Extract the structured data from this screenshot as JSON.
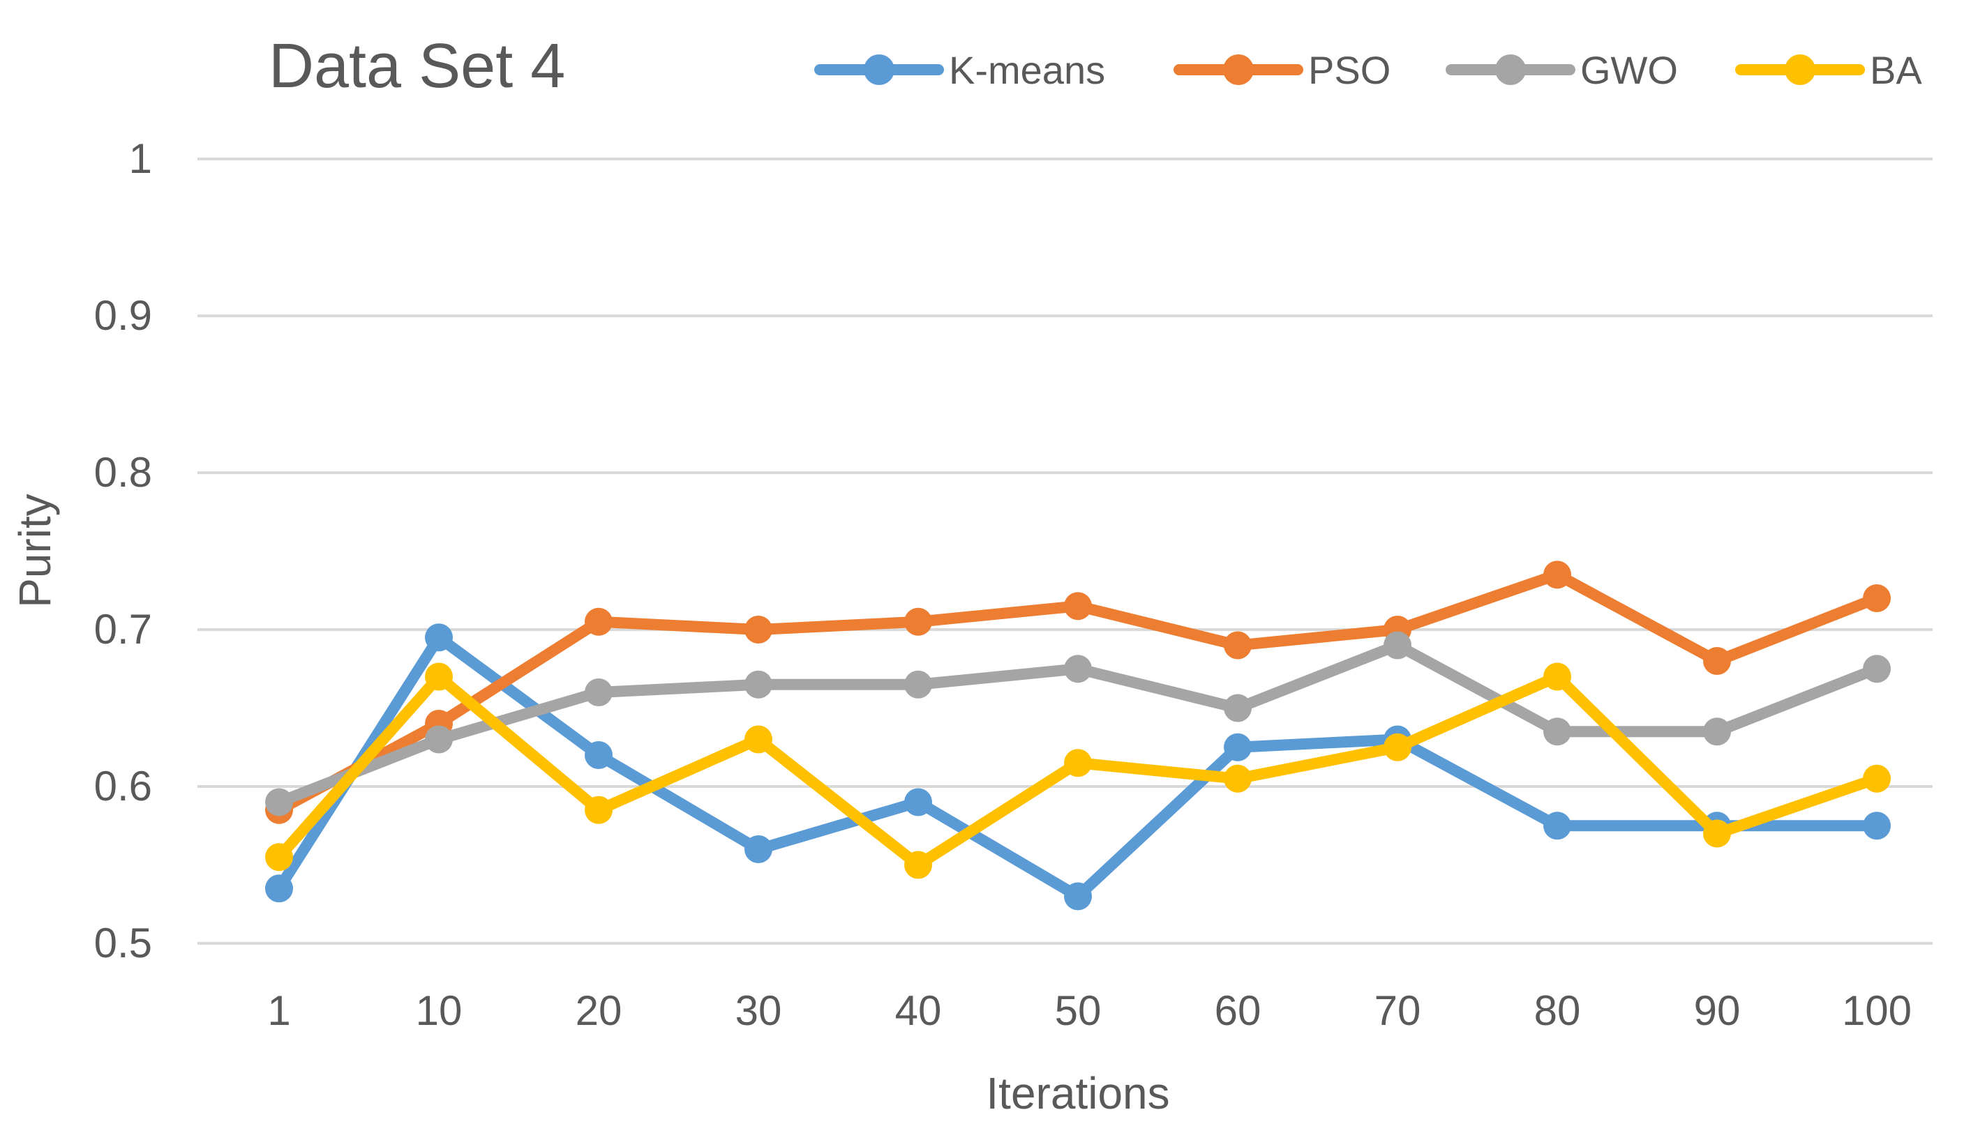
{
  "chart_data": {
    "type": "line",
    "title": "Data Set 4",
    "xlabel": "Iterations",
    "ylabel": "Purity",
    "categories": [
      "1",
      "10",
      "20",
      "30",
      "40",
      "50",
      "60",
      "70",
      "80",
      "90",
      "100"
    ],
    "ylim": [
      0.5,
      1
    ],
    "yticks": [
      "0.5",
      "0.6",
      "0.7",
      "0.8",
      "0.9",
      "1"
    ],
    "grid": true,
    "legend_position": "top-right",
    "series": [
      {
        "name": "K-means",
        "color": "#5B9BD5",
        "values": [
          0.535,
          0.695,
          0.62,
          0.56,
          0.59,
          0.53,
          0.625,
          0.63,
          0.575,
          0.575,
          0.575
        ]
      },
      {
        "name": "PSO",
        "color": "#ED7D31",
        "values": [
          0.585,
          0.64,
          0.705,
          0.7,
          0.705,
          0.715,
          0.69,
          0.7,
          0.735,
          0.68,
          0.72
        ]
      },
      {
        "name": "GWO",
        "color": "#A5A5A5",
        "values": [
          0.59,
          0.63,
          0.66,
          0.665,
          0.665,
          0.675,
          0.65,
          0.69,
          0.635,
          0.635,
          0.675
        ]
      },
      {
        "name": "BA",
        "color": "#FFC000",
        "values": [
          0.555,
          0.67,
          0.585,
          0.63,
          0.55,
          0.615,
          0.605,
          0.625,
          0.67,
          0.57,
          0.605
        ]
      }
    ]
  }
}
